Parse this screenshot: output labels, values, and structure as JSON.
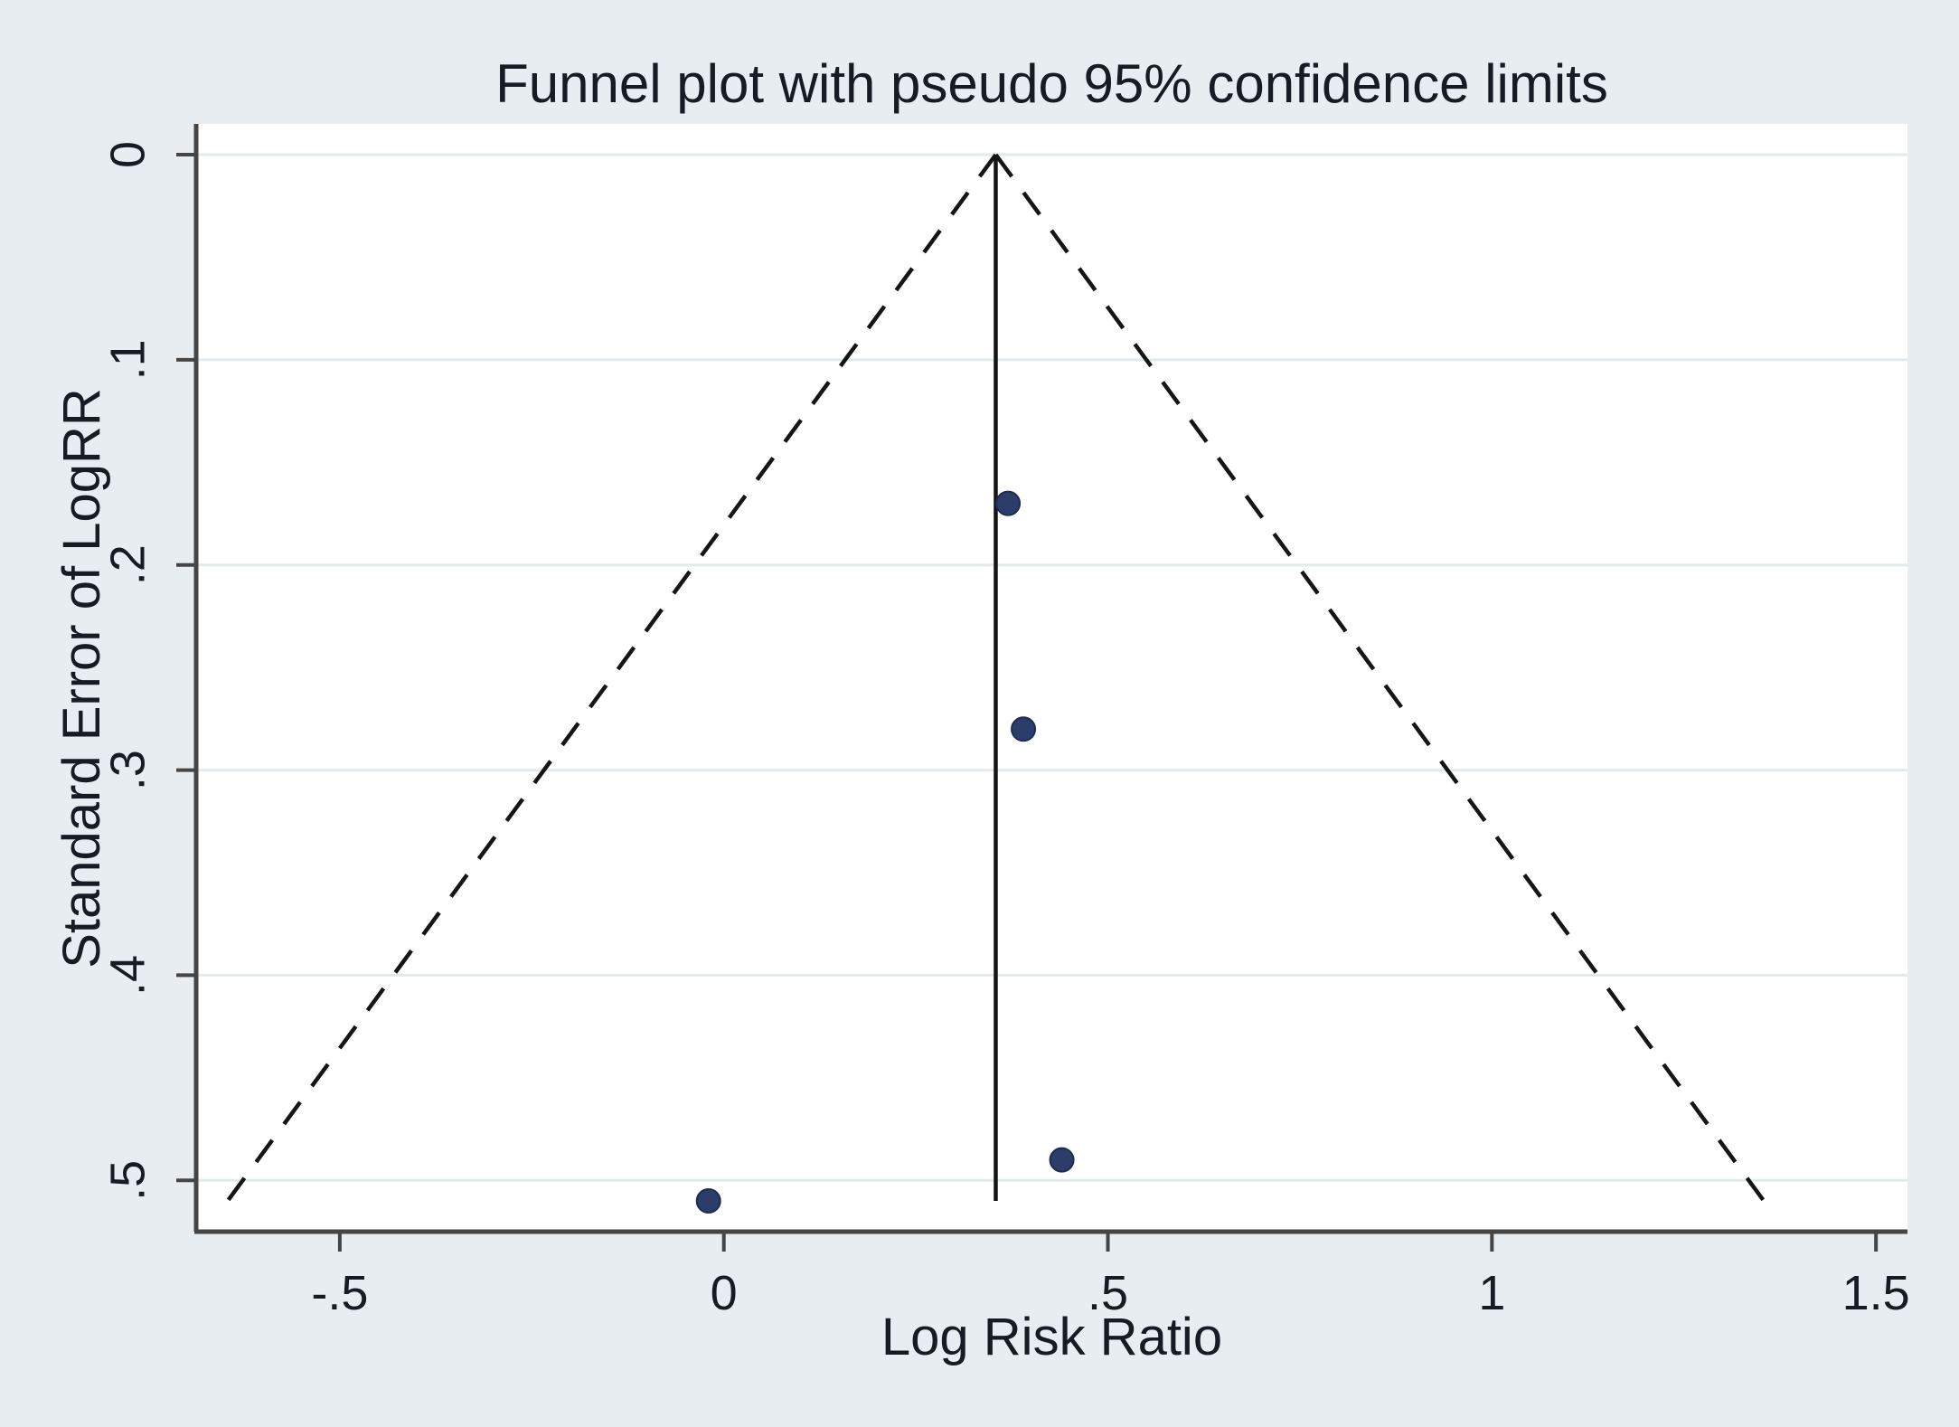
{
  "title": "Funnel plot with pseudo 95% confidence limits",
  "axes": {
    "x": {
      "label": "Log Risk Ratio",
      "range": [
        -0.687,
        1.541
      ],
      "ticks": [
        {
          "value": -0.5,
          "label": "-.5"
        },
        {
          "value": 0,
          "label": "0"
        },
        {
          "value": 0.5,
          "label": ".5"
        },
        {
          "value": 1,
          "label": "1"
        },
        {
          "value": 1.5,
          "label": "1.5"
        }
      ]
    },
    "y": {
      "label": "Standard Error of LogRR",
      "range": [
        -0.015,
        0.525
      ],
      "direction": "inverted",
      "ticks": [
        {
          "value": 0,
          "label": "0"
        },
        {
          "value": 0.1,
          "label": ".1"
        },
        {
          "value": 0.2,
          "label": ".2"
        },
        {
          "value": 0.3,
          "label": ".3"
        },
        {
          "value": 0.4,
          "label": ".4"
        },
        {
          "value": 0.5,
          "label": ".5"
        }
      ]
    }
  },
  "chart_data": {
    "type": "scatter",
    "variant": "funnel-plot",
    "title": "Funnel plot with pseudo 95% confidence limits",
    "xlabel": "Log Risk Ratio",
    "ylabel": "Standard Error of LogRR",
    "xlim": [
      -0.687,
      1.541
    ],
    "ylim": [
      -0.015,
      0.525
    ],
    "y_inverted": true,
    "grid": "horizontal",
    "points": [
      {
        "log_rr": 0.37,
        "se": 0.17
      },
      {
        "log_rr": 0.39,
        "se": 0.28
      },
      {
        "log_rr": 0.44,
        "se": 0.49
      },
      {
        "log_rr": -0.02,
        "se": 0.51
      }
    ],
    "effect_line": {
      "log_rr": 0.354,
      "se_from": 0,
      "se_to": 0.51
    },
    "pseudo_confidence_limits": {
      "z": 1.96,
      "apex_log_rr": 0.354,
      "apex_se": 0,
      "se_max": 0.51,
      "left_end_log_rr": -0.646,
      "right_end_log_rr": 1.354,
      "style": "dashed"
    }
  },
  "colors": {
    "background": "#e7edf1",
    "plot_background": "#ffffff",
    "gridline": "#e3eaee",
    "axis": "#454545",
    "text": "#161b24",
    "marker_fill": "#2c3d69",
    "marker_stroke": "#1e2c4f",
    "line": "#151515"
  }
}
